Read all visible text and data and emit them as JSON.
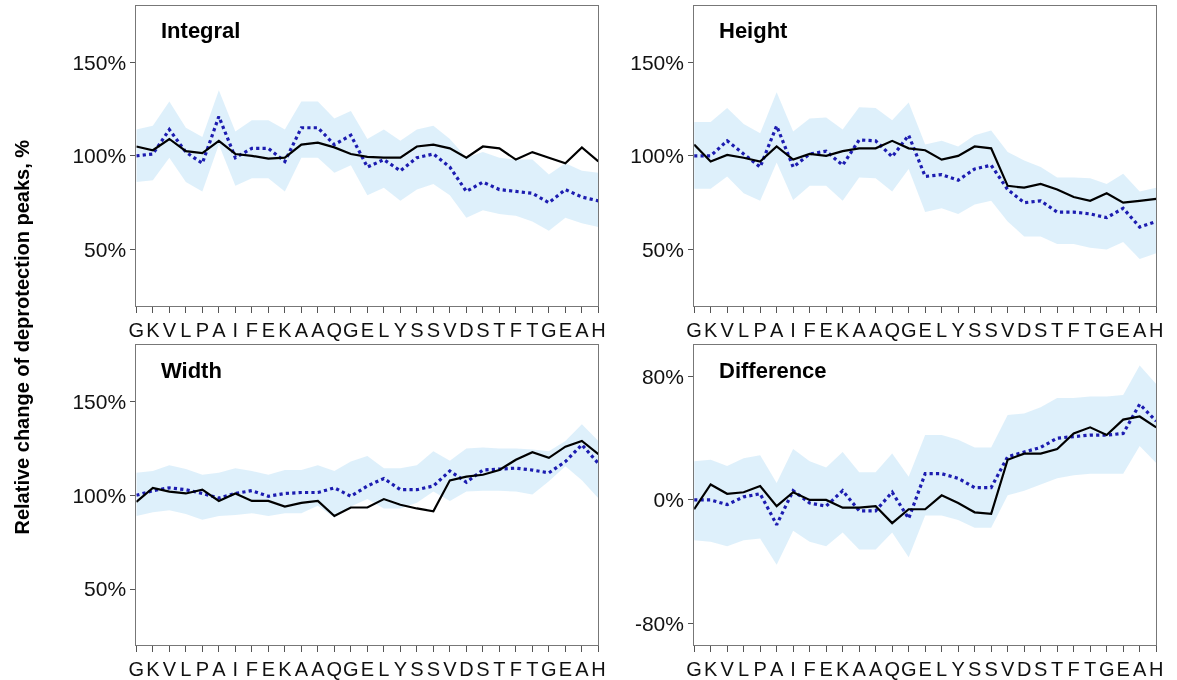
{
  "chart_data": [
    {
      "type": "line",
      "title": "Integral",
      "ylabel": "Relative change of deprotection peaks, %",
      "categories": [
        "G",
        "K",
        "V",
        "L",
        "P",
        "A",
        "I",
        "F",
        "E",
        "K",
        "A",
        "A",
        "Q",
        "G",
        "E",
        "L",
        "Y",
        "S",
        "S",
        "V",
        "D",
        "S",
        "T",
        "F",
        "T",
        "G",
        "E",
        "A",
        "H"
      ],
      "ylim": [
        20,
        180
      ],
      "yticks": [
        {
          "value": 50,
          "label": "50%"
        },
        {
          "value": 100,
          "label": "100%"
        },
        {
          "value": 150,
          "label": "150%"
        }
      ],
      "series": [
        {
          "color": "#1c1cb0",
          "line_style": "dotted",
          "values": [
            100,
            101,
            114,
            102,
            96,
            121,
            99,
            104,
            104,
            97,
            115,
            115,
            106,
            111,
            94,
            98,
            92,
            99,
            101,
            94,
            81,
            86,
            82,
            81,
            80,
            75,
            82,
            78,
            76
          ],
          "lower": [
            86,
            87,
            99,
            86,
            81,
            106,
            84,
            88,
            88,
            81,
            99,
            99,
            91,
            95,
            79,
            83,
            76,
            82,
            85,
            79,
            67,
            71,
            69,
            68,
            65,
            60,
            67,
            64,
            62
          ],
          "upper": [
            114,
            116,
            129,
            115,
            110,
            135,
            113,
            119,
            119,
            114,
            129,
            129,
            120,
            124,
            109,
            114,
            108,
            114,
            116,
            109,
            99,
            102,
            99,
            98,
            98,
            90,
            96,
            92,
            91
          ]
        },
        {
          "color": "#000000",
          "line_style": "solid",
          "values": [
            105,
            103,
            109,
            102.5,
            101.5,
            108,
            101,
            100,
            98.5,
            99,
            106,
            107,
            104.5,
            101,
            99.5,
            99,
            99,
            105,
            106,
            104,
            99,
            105,
            104,
            98,
            102,
            99,
            96,
            104.5,
            97
          ]
        }
      ]
    },
    {
      "type": "line",
      "title": "Height",
      "categories": [
        "G",
        "K",
        "V",
        "L",
        "P",
        "A",
        "I",
        "F",
        "E",
        "K",
        "A",
        "A",
        "Q",
        "G",
        "E",
        "L",
        "Y",
        "S",
        "S",
        "V",
        "D",
        "S",
        "T",
        "F",
        "T",
        "G",
        "E",
        "A",
        "H"
      ],
      "ylim": [
        20,
        180
      ],
      "yticks": [
        {
          "value": 50,
          "label": "50%"
        },
        {
          "value": 100,
          "label": "100%"
        },
        {
          "value": 150,
          "label": "150%"
        }
      ],
      "series": [
        {
          "color": "#1c1cb0",
          "line_style": "dotted",
          "values": [
            100,
            100,
            108,
            101,
            94,
            116,
            94,
            101,
            102.5,
            95,
            108.5,
            108,
            99.5,
            111,
            89,
            90,
            87,
            93,
            95,
            82,
            75,
            76,
            70,
            70,
            69,
            67,
            72,
            62,
            65
          ],
          "lower": [
            82.5,
            82.5,
            89,
            80,
            76,
            96.5,
            76.5,
            84,
            84,
            76,
            88.5,
            88,
            81,
            93,
            70,
            72,
            69,
            74,
            76,
            65,
            57,
            57,
            53,
            53,
            51,
            50,
            54,
            45,
            48
          ],
          "upper": [
            118,
            118,
            125.5,
            117,
            112,
            134,
            113,
            120,
            120.5,
            114,
            126,
            125.5,
            119,
            128.5,
            106,
            108,
            105,
            111,
            113.5,
            102,
            97.5,
            94,
            88.5,
            88.5,
            88,
            85,
            90.5,
            81,
            83
          ]
        },
        {
          "color": "#000000",
          "line_style": "solid",
          "values": [
            106,
            97,
            100.5,
            99,
            97,
            105,
            98,
            101,
            100,
            102.5,
            104,
            104,
            108,
            104,
            103,
            98,
            100,
            105,
            104,
            84,
            83,
            85,
            82,
            78,
            76,
            80,
            75,
            76,
            77
          ]
        }
      ]
    },
    {
      "type": "line",
      "title": "Width",
      "categories": [
        "G",
        "K",
        "V",
        "L",
        "P",
        "A",
        "I",
        "F",
        "E",
        "K",
        "A",
        "A",
        "Q",
        "G",
        "E",
        "L",
        "Y",
        "S",
        "S",
        "V",
        "D",
        "S",
        "T",
        "F",
        "T",
        "G",
        "E",
        "A",
        "H"
      ],
      "ylim": [
        20,
        180
      ],
      "yticks": [
        {
          "value": 50,
          "label": "50%"
        },
        {
          "value": 100,
          "label": "100%"
        },
        {
          "value": 150,
          "label": "150%"
        }
      ],
      "series": [
        {
          "color": "#1c1cb0",
          "line_style": "dotted",
          "values": [
            100,
            102.5,
            104,
            103,
            101,
            98.5,
            101,
            102.5,
            99.5,
            101,
            101.5,
            101.5,
            104,
            99.5,
            105,
            109,
            103,
            103,
            105,
            113,
            107,
            113.5,
            114,
            114.5,
            113.5,
            112,
            118,
            127,
            117
          ],
          "lower": [
            89,
            91,
            92,
            90,
            87,
            89,
            89.5,
            90.5,
            89,
            90.5,
            90.5,
            94.5,
            88,
            94,
            98,
            93,
            93,
            96,
            102,
            97,
            102,
            102.5,
            102.5,
            102,
            100.5,
            107.5,
            115.5,
            108,
            98.5
          ],
          "upper": [
            112,
            113,
            116,
            114,
            111,
            112,
            114.5,
            113,
            111,
            113.5,
            113.5,
            116,
            113,
            118,
            121,
            114.5,
            114.5,
            116,
            123.5,
            118.5,
            125,
            125.5,
            125,
            125,
            124.5,
            123.5,
            129,
            138,
            129
          ]
        },
        {
          "color": "#000000",
          "line_style": "solid",
          "values": [
            96.5,
            104,
            102,
            101,
            103,
            97,
            101,
            97,
            97,
            94,
            96,
            97,
            89,
            93.5,
            93.5,
            98,
            95,
            93,
            91.5,
            108,
            110,
            111,
            113.5,
            119,
            123,
            120,
            126,
            129,
            122
          ]
        }
      ]
    },
    {
      "type": "line",
      "title": "Difference",
      "categories": [
        "G",
        "K",
        "V",
        "L",
        "P",
        "A",
        "I",
        "F",
        "E",
        "K",
        "A",
        "A",
        "Q",
        "G",
        "E",
        "L",
        "Y",
        "S",
        "S",
        "V",
        "D",
        "S",
        "T",
        "F",
        "T",
        "G",
        "E",
        "A",
        "H"
      ],
      "ylim": [
        -94,
        100
      ],
      "yticks": [
        {
          "value": -80,
          "label": "-80%"
        },
        {
          "value": 0,
          "label": "0%"
        },
        {
          "value": 80,
          "label": "80%"
        }
      ],
      "series": [
        {
          "color": "#1c1cb0",
          "line_style": "dotted",
          "values": [
            0,
            0,
            -3,
            2,
            4,
            -16,
            6,
            -2,
            -4,
            6,
            -7,
            -7,
            5,
            -12,
            17,
            17,
            14,
            8,
            8,
            28,
            31,
            34,
            40,
            41,
            42,
            42,
            43,
            62,
            51
          ],
          "lower": [
            -26,
            -27,
            -30,
            -26,
            -25,
            -42,
            -20,
            -27,
            -30,
            -21,
            -32,
            -32,
            -21,
            -37,
            -10,
            -10,
            -13,
            -18,
            -18,
            3,
            6,
            10,
            14,
            16,
            17,
            17,
            17,
            35,
            24
          ],
          "upper": [
            25,
            26,
            22,
            27,
            29,
            11,
            33,
            25,
            21,
            31,
            18,
            18,
            30,
            15,
            42,
            42,
            39,
            34,
            34,
            55,
            56,
            60,
            66,
            66,
            67,
            67,
            68,
            87,
            75
          ]
        },
        {
          "color": "#000000",
          "line_style": "solid",
          "values": [
            -6,
            10,
            4,
            5,
            9,
            -4,
            5,
            0,
            0,
            -5,
            -5,
            -4,
            -15,
            -6,
            -6,
            3,
            -2,
            -8,
            -9,
            26,
            30,
            30,
            33,
            43,
            47,
            42,
            52,
            54,
            47
          ]
        }
      ]
    }
  ]
}
